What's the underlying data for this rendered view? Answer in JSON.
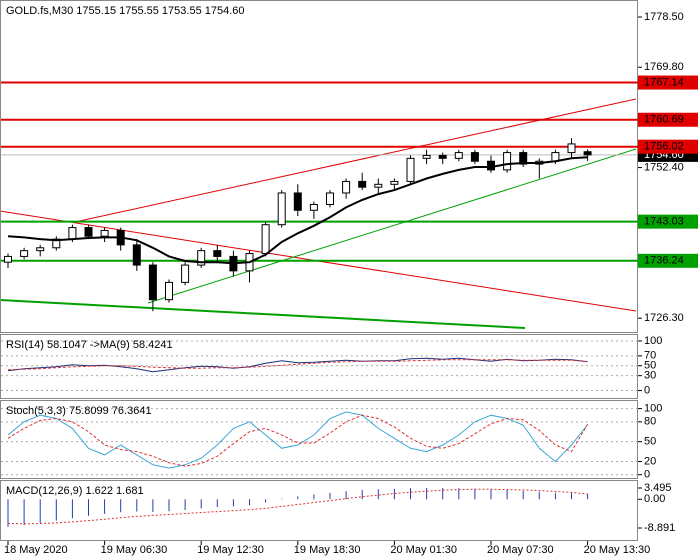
{
  "chart_data": [
    {
      "type": "candlestick",
      "title": "GOLD.fs,M30  1755.15 1755.55 1753.55 1754.60",
      "categories": [
        "18 May 2020",
        null,
        null,
        null,
        null,
        null,
        "19 May 06:30",
        null,
        null,
        null,
        null,
        null,
        "19 May 12:30",
        null,
        null,
        null,
        null,
        null,
        "19 May 18:30",
        null,
        null,
        null,
        null,
        null,
        "20 May 01:30",
        null,
        null,
        null,
        null,
        null,
        "20 May 07:30",
        null,
        null,
        null,
        null,
        null,
        "20 May 13:30"
      ],
      "ohlc": [
        [
          1736.0,
          1737.5,
          1735.0,
          1737.0
        ],
        [
          1737.0,
          1738.5,
          1736.5,
          1738.0
        ],
        [
          1738.0,
          1739.0,
          1737.0,
          1738.5
        ],
        [
          1738.5,
          1740.5,
          1738.0,
          1740.0
        ],
        [
          1740.0,
          1742.5,
          1739.5,
          1742.0
        ],
        [
          1742.0,
          1742.5,
          1740.0,
          1740.5
        ],
        [
          1740.5,
          1742.0,
          1739.5,
          1741.5
        ],
        [
          1741.5,
          1742.0,
          1738.0,
          1739.0
        ],
        [
          1739.0,
          1740.0,
          1734.5,
          1735.5
        ],
        [
          1735.5,
          1736.0,
          1727.5,
          1729.5
        ],
        [
          1729.5,
          1733.0,
          1729.0,
          1732.5
        ],
        [
          1732.5,
          1736.0,
          1732.0,
          1735.5
        ],
        [
          1735.5,
          1738.5,
          1735.0,
          1738.0
        ],
        [
          1738.0,
          1739.0,
          1736.0,
          1737.0
        ],
        [
          1737.0,
          1738.0,
          1733.5,
          1734.5
        ],
        [
          1734.5,
          1738.0,
          1732.5,
          1737.5
        ],
        [
          1737.5,
          1743.0,
          1737.0,
          1742.5
        ],
        [
          1742.5,
          1748.5,
          1742.0,
          1748.0
        ],
        [
          1748.0,
          1749.5,
          1744.0,
          1745.0
        ],
        [
          1745.0,
          1746.5,
          1743.5,
          1746.0
        ],
        [
          1746.0,
          1748.5,
          1745.5,
          1748.0
        ],
        [
          1748.0,
          1750.5,
          1747.0,
          1750.0
        ],
        [
          1750.0,
          1751.5,
          1748.5,
          1749.0
        ],
        [
          1749.0,
          1750.5,
          1748.0,
          1749.5
        ],
        [
          1749.5,
          1750.5,
          1748.5,
          1750.0
        ],
        [
          1750.0,
          1754.5,
          1749.5,
          1754.0
        ],
        [
          1754.0,
          1755.5,
          1753.0,
          1754.5
        ],
        [
          1754.5,
          1755.0,
          1753.0,
          1754.0
        ],
        [
          1754.0,
          1755.5,
          1753.5,
          1755.0
        ],
        [
          1755.0,
          1755.5,
          1753.0,
          1753.5
        ],
        [
          1753.5,
          1754.5,
          1751.5,
          1752.0
        ],
        [
          1752.0,
          1755.5,
          1751.5,
          1755.0
        ],
        [
          1755.0,
          1755.5,
          1752.5,
          1753.0
        ],
        [
          1753.0,
          1754.0,
          1750.5,
          1753.5
        ],
        [
          1753.5,
          1755.5,
          1753.0,
          1755.0
        ],
        [
          1755.0,
          1757.5,
          1754.0,
          1756.5
        ],
        [
          1755.15,
          1755.55,
          1753.55,
          1754.6
        ]
      ],
      "ma": {
        "color": "#000000",
        "values": [
          1740.5,
          1740.3,
          1740.0,
          1739.8,
          1740.0,
          1740.2,
          1740.3,
          1740.3,
          1739.8,
          1738.5,
          1737.0,
          1736.2,
          1736.0,
          1736.0,
          1735.8,
          1736.0,
          1737.3,
          1739.5,
          1741.0,
          1742.3,
          1743.8,
          1745.5,
          1746.8,
          1747.8,
          1748.5,
          1749.5,
          1750.5,
          1751.3,
          1752.0,
          1752.5,
          1752.5,
          1753.0,
          1753.2,
          1753.2,
          1753.5,
          1754.0,
          1754.2
        ]
      },
      "levels": [
        {
          "value": 1767.14,
          "color": "#e00000"
        },
        {
          "value": 1760.69,
          "color": "#e00000"
        },
        {
          "value": 1756.02,
          "color": "#e00000"
        },
        {
          "value": 1743.03,
          "color": "#00a000"
        },
        {
          "value": 1736.24,
          "color": "#00a000"
        }
      ],
      "last_price": {
        "value": 1754.6,
        "label": "1754.60"
      },
      "ylim": [
        1723.9,
        1781.1
      ],
      "yticks": [
        {
          "value": 1778.5,
          "label": "1778.50"
        },
        {
          "value": 1769.8,
          "label": "1769.80"
        },
        {
          "value": 1752.4,
          "label": "1752.40"
        },
        {
          "value": 1726.3,
          "label": "1726.30"
        }
      ]
    },
    {
      "type": "line",
      "title": "RSI(14) 58.1047  ->MA(9) 58.4241",
      "series": [
        {
          "color": "#1c2f7a",
          "values": [
            40,
            44,
            46,
            48,
            52,
            50,
            51,
            48,
            44,
            38,
            42,
            46,
            49,
            48,
            45,
            48,
            55,
            60,
            56,
            57,
            59,
            61,
            59,
            60,
            60,
            64,
            65,
            63,
            65,
            62,
            59,
            63,
            60,
            61,
            63,
            62,
            58.1047
          ]
        },
        {
          "color": "#e03030",
          "dashed": true,
          "values": [
            42,
            43,
            44,
            46,
            48,
            49,
            50,
            50,
            49,
            47,
            46,
            45,
            45,
            46,
            46,
            47,
            49,
            51,
            53,
            55,
            57,
            58,
            59,
            59,
            59,
            60,
            61,
            62,
            62,
            62,
            62,
            62,
            61,
            61,
            61,
            61,
            58.4241
          ]
        }
      ],
      "ylim": [
        -15,
        110
      ],
      "yticks": [
        100,
        70,
        50,
        30,
        0
      ],
      "grid": true
    },
    {
      "type": "line",
      "title": "Stoch(5,3,3) 75.8099 76.3641",
      "series": [
        {
          "color": "#3aa6d8",
          "values": [
            60,
            80,
            90,
            85,
            70,
            40,
            30,
            45,
            30,
            15,
            10,
            15,
            25,
            45,
            70,
            80,
            60,
            40,
            45,
            60,
            85,
            95,
            90,
            70,
            55,
            40,
            35,
            45,
            60,
            80,
            90,
            85,
            75,
            40,
            20,
            45,
            75.8099
          ]
        },
        {
          "color": "#e03030",
          "dashed": true,
          "values": [
            55,
            70,
            82,
            85,
            80,
            65,
            45,
            38,
            35,
            28,
            18,
            13,
            17,
            28,
            47,
            65,
            70,
            60,
            48,
            48,
            63,
            80,
            90,
            85,
            72,
            55,
            43,
            40,
            47,
            62,
            77,
            85,
            83,
            67,
            45,
            35,
            76.3641
          ]
        }
      ],
      "ylim": [
        -5,
        110
      ],
      "yticks": [
        100,
        80,
        50,
        20,
        0
      ],
      "grid": true
    },
    {
      "type": "bar",
      "title": "MACD(12,26,9) 1.622 1.681",
      "series": [
        {
          "type": "bar",
          "color": "#2040a8",
          "values": [
            -8.5,
            -8.0,
            -7.3,
            -6.6,
            -5.9,
            -5.1,
            -4.5,
            -4.0,
            -3.8,
            -3.9,
            -3.7,
            -3.3,
            -2.8,
            -2.4,
            -2.2,
            -1.8,
            -1.0,
            0.2,
            0.9,
            1.5,
            2.0,
            2.5,
            2.9,
            3.1,
            3.2,
            3.4,
            3.5,
            3.5,
            3.4,
            3.3,
            3.1,
            2.9,
            2.6,
            2.3,
            2.0,
            1.9,
            1.622
          ]
        },
        {
          "type": "line",
          "color": "#e03030",
          "dashed": true,
          "values": [
            -7.5,
            -7.6,
            -7.5,
            -7.3,
            -7.0,
            -6.6,
            -6.2,
            -5.7,
            -5.3,
            -5.0,
            -4.7,
            -4.4,
            -4.1,
            -3.8,
            -3.5,
            -3.2,
            -2.8,
            -2.2,
            -1.6,
            -1.0,
            -0.4,
            0.2,
            0.8,
            1.3,
            1.8,
            2.2,
            2.5,
            2.8,
            3.0,
            3.1,
            3.1,
            3.0,
            2.9,
            2.7,
            2.4,
            2.1,
            1.681
          ]
        }
      ],
      "ylim": [
        -12.6,
        5.35
      ],
      "yticks": [
        3.495,
        {
          "value": 0,
          "label": "0.00"
        },
        -8.891
      ]
    }
  ]
}
